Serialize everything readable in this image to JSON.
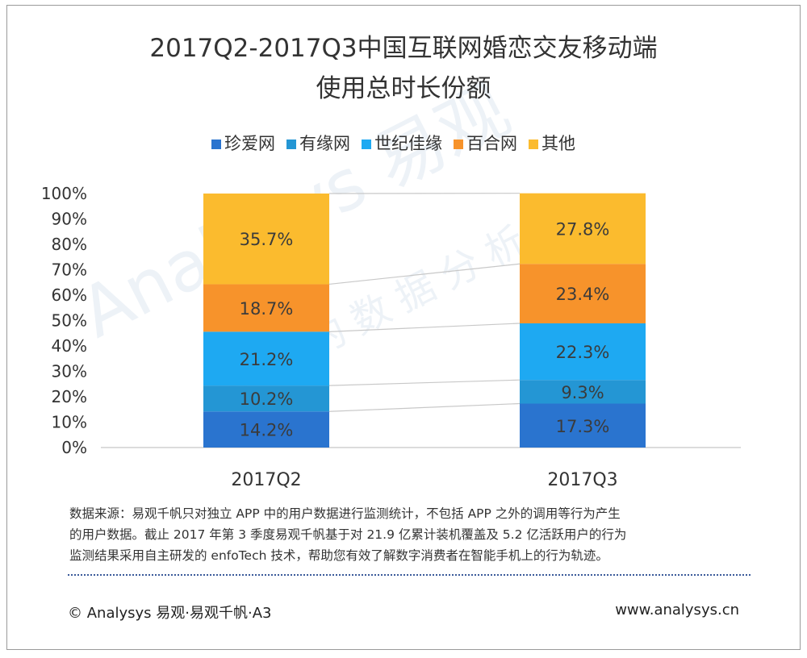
{
  "chart_data": {
    "type": "bar",
    "stacked": true,
    "title_lines": [
      "2017Q2-2017Q3中国互联网婚恋交友移动端",
      "使用总时长份额"
    ],
    "categories": [
      "2017Q2",
      "2017Q3"
    ],
    "series": [
      {
        "name": "珍爱网",
        "color": "#2a74cf",
        "values": [
          14.2,
          17.3
        ],
        "labels": [
          "14.2%",
          "17.3%"
        ]
      },
      {
        "name": "有缘网",
        "color": "#2496d4",
        "values": [
          10.2,
          9.3
        ],
        "labels": [
          "10.2%",
          "9.3%"
        ]
      },
      {
        "name": "世纪佳缘",
        "color": "#1ea9f2",
        "values": [
          21.2,
          22.3
        ],
        "labels": [
          "21.2%",
          "22.3%"
        ]
      },
      {
        "name": "百合网",
        "color": "#f7932b",
        "values": [
          18.7,
          23.4
        ],
        "labels": [
          "18.7%",
          "23.4%"
        ]
      },
      {
        "name": "其他",
        "color": "#fbbb2e",
        "values": [
          35.7,
          27.8
        ],
        "labels": [
          "35.7%",
          "27.8%"
        ]
      }
    ],
    "yticks": [
      "0%",
      "10%",
      "20%",
      "30%",
      "40%",
      "50%",
      "60%",
      "70%",
      "80%",
      "90%",
      "100%"
    ],
    "ylim": [
      0,
      100
    ],
    "legend_position": "top",
    "grid": false
  },
  "footer": {
    "note_lines": [
      "数据来源：易观千帆只对独立 APP 中的用户数据进行监测统计，不包括 APP 之外的调用等行为产生",
      "的用户数据。截止 2017 年第 3 季度易观千帆基于对 21.9 亿累计装机覆盖及 5.2 亿活跃用户的行为",
      "监测结果采用自主研发的 enfoTech 技术，帮助您有效了解数字消费者在智能手机上的行为轨迹。"
    ],
    "copyright": "© Analysys 易观·易观千帆·A3",
    "website": "www.analysys.cn"
  },
  "watermark": {
    "text_main": "Analysys 易观",
    "text_sub": "专业的数据分析"
  }
}
